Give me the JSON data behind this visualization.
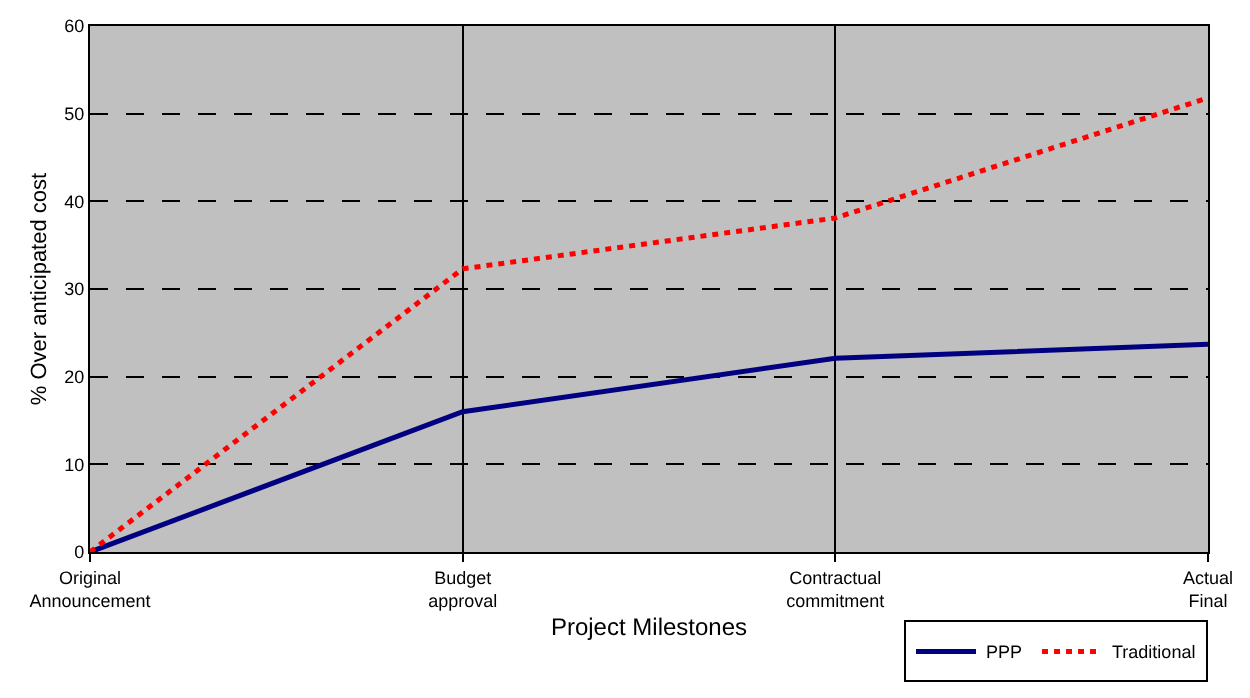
{
  "chart_data": {
    "type": "line",
    "xlabel": "Project Milestones",
    "ylabel": "% Over anticipated cost",
    "categories": [
      "Original\nAnnouncement",
      "Budget\napproval",
      "Contractual\ncommitment",
      "Actual\nFinal"
    ],
    "ylim": [
      0,
      60
    ],
    "yticks": [
      0,
      10,
      20,
      30,
      40,
      50,
      60
    ],
    "grid": true,
    "series": [
      {
        "name": "PPP",
        "color": "#000080",
        "values": [
          0,
          16.0,
          22.1,
          23.7
        ],
        "line_style": "solid"
      },
      {
        "name": "Traditional",
        "color": "#ff0000",
        "values": [
          0,
          32.3,
          38.1,
          51.8
        ],
        "line_style": "dotted"
      }
    ],
    "legend": "bottom right"
  }
}
